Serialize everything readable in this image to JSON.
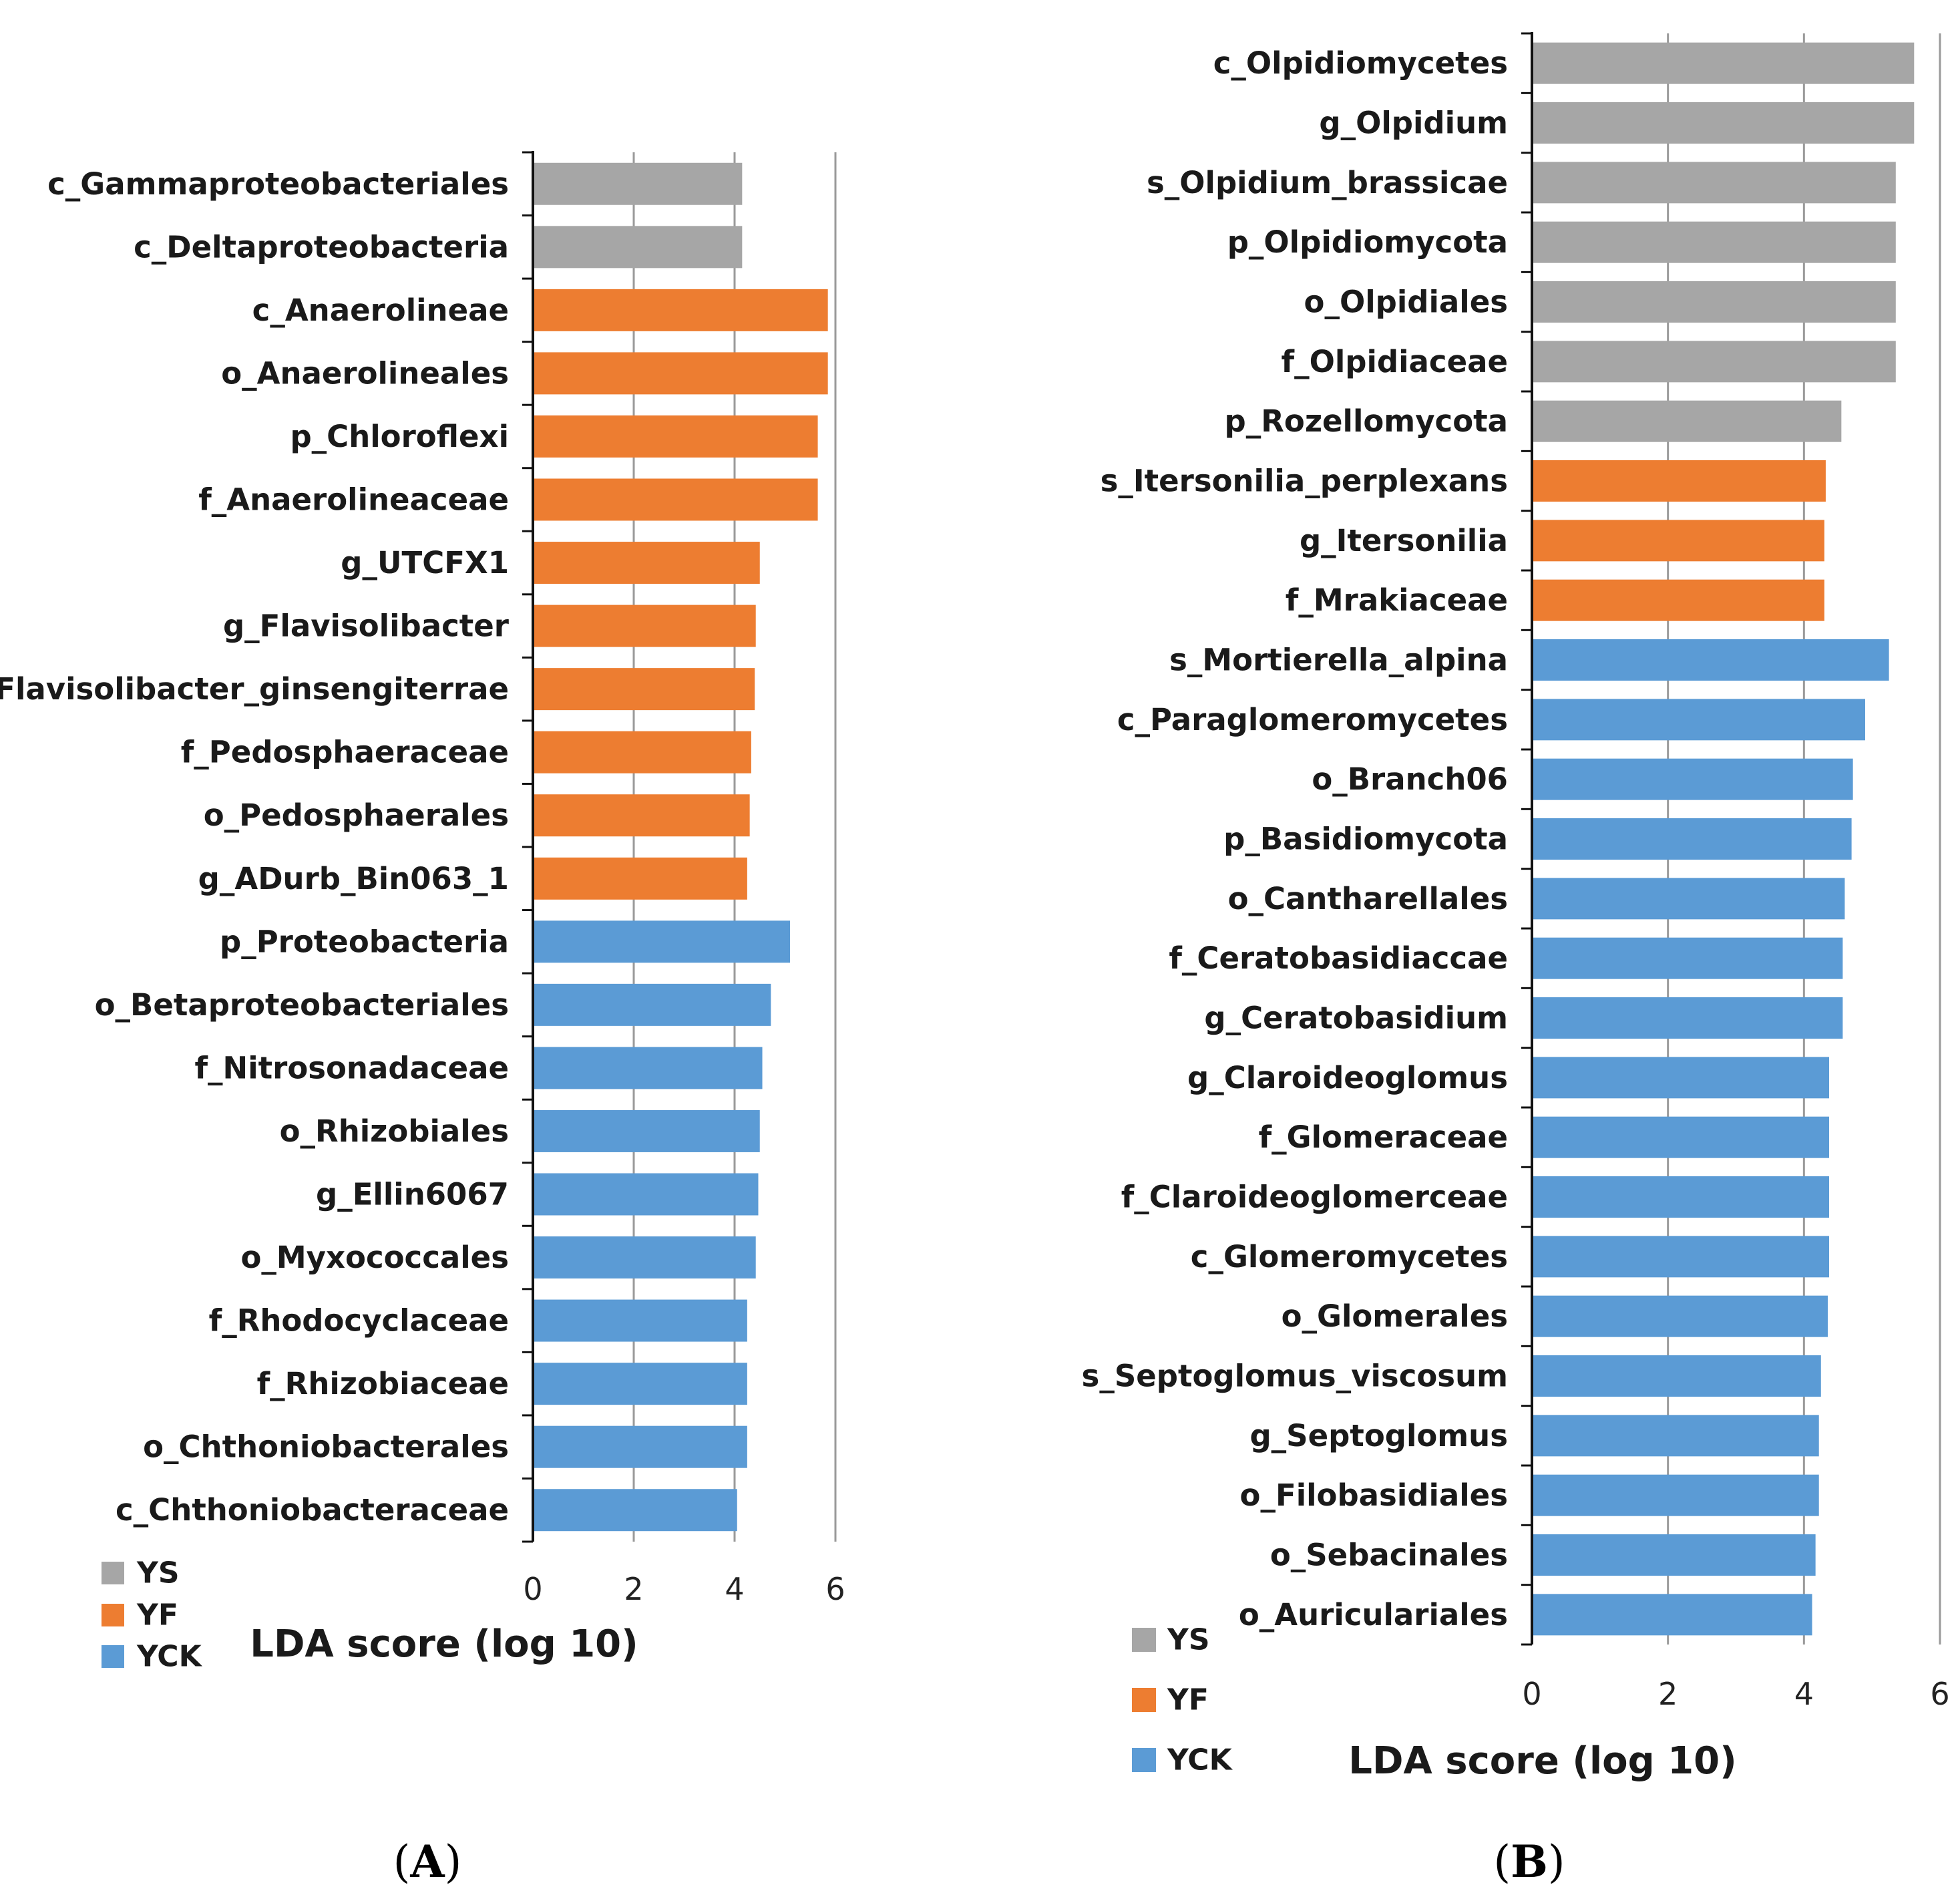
{
  "colors": {
    "YS": "#a6a6a6",
    "YF": "#ed7d31",
    "YCK": "#5b9bd5"
  },
  "legend": [
    "YS",
    "YF",
    "YCK"
  ],
  "panels": [
    {
      "open": "(",
      "letter": "A",
      "close": ")"
    },
    {
      "open": "(",
      "letter": "B",
      "close": ")"
    }
  ],
  "chart_data": [
    {
      "type": "bar",
      "orientation": "horizontal",
      "xlabel": "LDA score (log 10)",
      "xlim": [
        0,
        6
      ],
      "xticks": [
        0,
        2,
        4,
        6
      ],
      "grid": true,
      "legend_position": "bottom-left",
      "categories": [
        "c_Gammaproteobacteriales",
        "c_Deltaproteobacteria",
        "c_Anaerolineae",
        "o_Anaerolineales",
        "p_Chloroflexi",
        "f_Anaerolineaceae",
        "g_UTCFX1",
        "g_Flavisolibacter",
        "s_Flavisolibacter_ginsengiterrae",
        "f_Pedosphaeraceae",
        "o_Pedosphaerales",
        "g_ADurb_Bin063_1",
        "p_Proteobacteria",
        "o_Betaproteobacteriales",
        "f_Nitrosonadaceae",
        "o_Rhizobiales",
        "g_Ellin6067",
        "o_Myxococcales",
        "f_Rhodocyclaceae",
        "f_Rhizobiaceae",
        "o_Chthoniobacterales",
        "c_Chthoniobacteraceae"
      ],
      "values": [
        4.15,
        4.15,
        5.85,
        5.85,
        5.65,
        5.65,
        4.5,
        4.42,
        4.4,
        4.33,
        4.3,
        4.25,
        5.1,
        4.72,
        4.55,
        4.5,
        4.47,
        4.42,
        4.25,
        4.25,
        4.25,
        4.05
      ],
      "groups": [
        "YS",
        "YS",
        "YF",
        "YF",
        "YF",
        "YF",
        "YF",
        "YF",
        "YF",
        "YF",
        "YF",
        "YF",
        "YCK",
        "YCK",
        "YCK",
        "YCK",
        "YCK",
        "YCK",
        "YCK",
        "YCK",
        "YCK",
        "YCK"
      ]
    },
    {
      "type": "bar",
      "orientation": "horizontal",
      "xlabel": "LDA score (log 10)",
      "xlim": [
        0,
        6
      ],
      "xticks": [
        0,
        2,
        4,
        6
      ],
      "grid": true,
      "legend_position": "bottom-left",
      "categories": [
        "c_Olpidiomycetes",
        "g_Olpidium",
        "s_Olpidium_brassicae",
        "p_Olpidiomycota",
        "o_Olpidiales",
        "f_Olpidiaceae",
        "p_Rozellomycota",
        "s_Itersonilia_perplexans",
        "g_Itersonilia",
        "f_Mrakiaceae",
        "s_Mortierella_alpina",
        "c_Paraglomeromycetes",
        "o_Branch06",
        "p_Basidiomycota",
        "o_Cantharellales",
        "f_Ceratobasidiaccae",
        "g_Ceratobasidium",
        "g_Claroideoglomus",
        "f_Glomeraceae",
        "f_Claroideoglomerceae",
        "c_Glomeromycetes",
        "o_Glomerales",
        "s_Septoglomus_viscosum",
        "g_Septoglomus",
        "o_Filobasidiales",
        "o_Sebacinales",
        "o_Auriculariales"
      ],
      "values": [
        5.62,
        5.62,
        5.35,
        5.35,
        5.35,
        5.35,
        4.55,
        4.32,
        4.3,
        4.3,
        5.25,
        4.9,
        4.72,
        4.7,
        4.6,
        4.57,
        4.57,
        4.37,
        4.37,
        4.37,
        4.37,
        4.35,
        4.25,
        4.22,
        4.22,
        4.17,
        4.12
      ],
      "groups": [
        "YS",
        "YS",
        "YS",
        "YS",
        "YS",
        "YS",
        "YS",
        "YF",
        "YF",
        "YF",
        "YCK",
        "YCK",
        "YCK",
        "YCK",
        "YCK",
        "YCK",
        "YCK",
        "YCK",
        "YCK",
        "YCK",
        "YCK",
        "YCK",
        "YCK",
        "YCK",
        "YCK",
        "YCK",
        "YCK"
      ]
    }
  ]
}
